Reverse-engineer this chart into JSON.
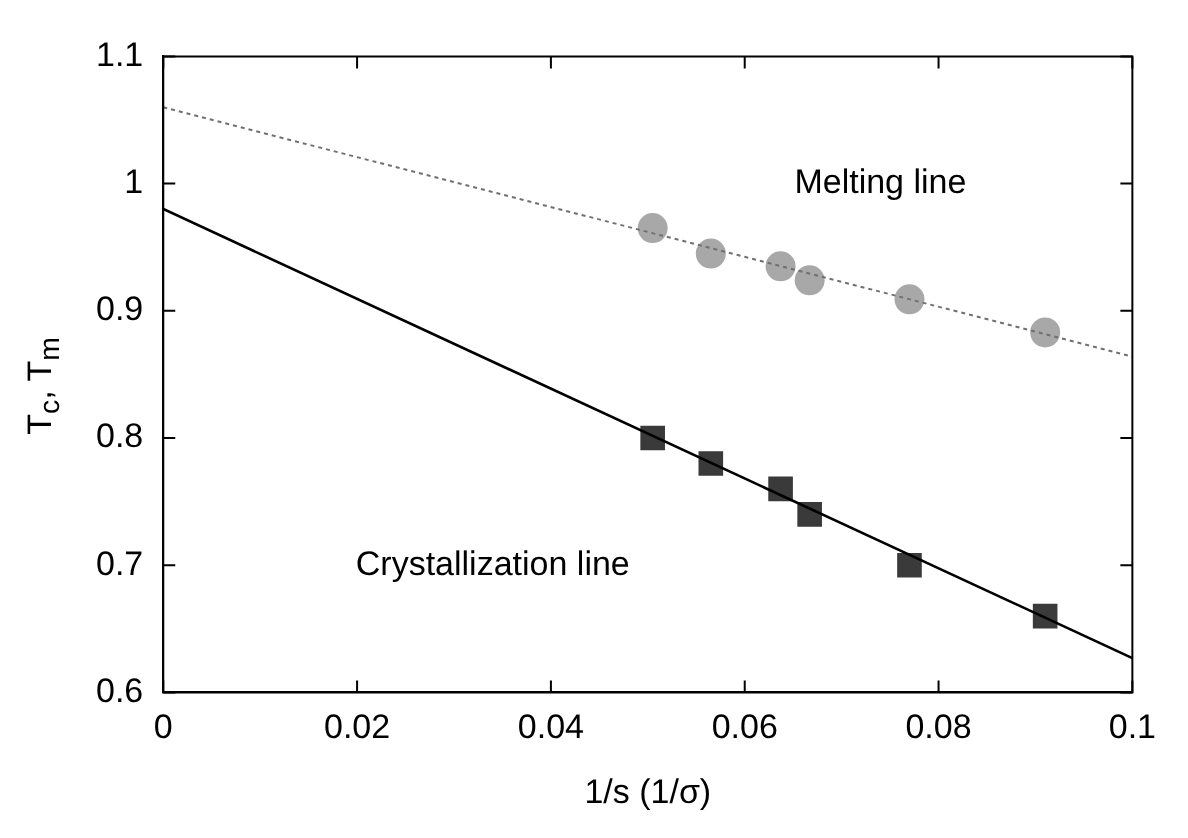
{
  "chart_data": {
    "type": "scatter",
    "xlabel": "1/s (1/σ)",
    "ylabel": "T$_{c}$, T$_{m}$",
    "xlim": [
      0,
      0.1
    ],
    "xticks": [
      0,
      0.02,
      0.04,
      0.06,
      0.08,
      {
        "value": 0.1,
        "label": "0.1"
      }
    ],
    "ylim": [
      0.6,
      1.1
    ],
    "yticks": [
      0.6,
      0.7,
      0.8,
      0.9,
      {
        "value": 1,
        "label": "1"
      },
      1.1
    ],
    "grid": false,
    "legend": false,
    "series": [
      {
        "type": "line",
        "color": "#707070",
        "line_style": "dotted",
        "marker": "none",
        "x": [
          0,
          0.1
        ],
        "values": [
          1.06,
          0.864
        ]
      },
      {
        "type": "line",
        "color": "#000000",
        "line_style": "solid",
        "marker": "none",
        "x": [
          0,
          0.1
        ],
        "values": [
          0.98,
          0.627
        ]
      },
      {
        "type": "scatter",
        "color": "#a8a8a8",
        "marker": "circle",
        "x": [
          0.0505,
          0.0565,
          0.0637,
          0.0667,
          0.077,
          0.091
        ],
        "values": [
          0.965,
          0.945,
          0.935,
          0.924,
          0.909,
          0.883
        ]
      },
      {
        "type": "scatter",
        "color": "#3a3a3a",
        "marker": "square",
        "x": [
          0.0505,
          0.0565,
          0.0637,
          0.0667,
          0.077,
          0.091
        ],
        "values": [
          0.8,
          0.78,
          0.76,
          0.74,
          0.7,
          0.66
        ]
      }
    ],
    "annotations": [
      "Melting line",
      "Crystallization line"
    ]
  }
}
